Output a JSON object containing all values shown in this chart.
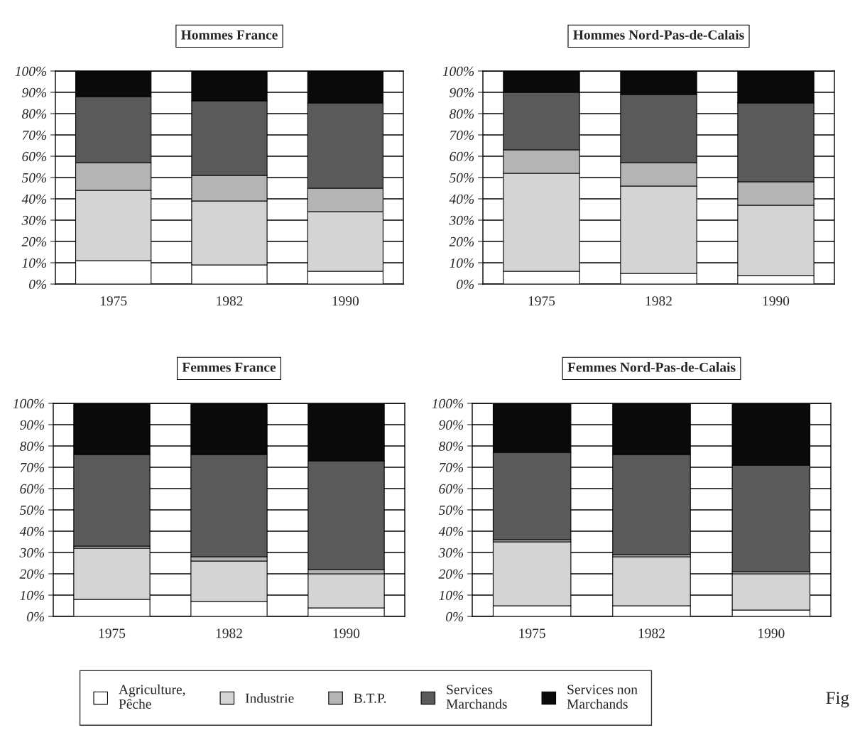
{
  "chart_data": [
    {
      "type": "bar",
      "title": "Hommes France",
      "categories": [
        "1975",
        "1982",
        "1990"
      ],
      "stacked": true,
      "grid": "y",
      "ylim": [
        0,
        100
      ],
      "yticks": [
        {
          "value": 0,
          "label": "0%"
        },
        {
          "value": 10,
          "label": "10%"
        },
        {
          "value": 20,
          "label": "20%"
        },
        {
          "value": 30,
          "label": "30%"
        },
        {
          "value": 40,
          "label": "40%"
        },
        {
          "value": 50,
          "label": "50%"
        },
        {
          "value": 60,
          "label": "60%"
        },
        {
          "value": 70,
          "label": "70%"
        },
        {
          "value": 80,
          "label": "80%"
        },
        {
          "value": 90,
          "label": "90%"
        },
        {
          "value": 100,
          "label": "100%"
        }
      ],
      "series": [
        {
          "color": "#ffffff",
          "values": [
            11,
            9,
            6
          ]
        },
        {
          "color": "#d4d4d4",
          "values": [
            33,
            30,
            28
          ]
        },
        {
          "color": "#b4b4b4",
          "values": [
            13,
            12,
            11
          ]
        },
        {
          "color": "#5a5a5a",
          "values": [
            31,
            35,
            40
          ]
        },
        {
          "color": "#0a0a0a",
          "values": [
            12,
            14,
            15
          ]
        }
      ]
    },
    {
      "type": "bar",
      "title": "Hommes Nord-Pas-de-Calais",
      "categories": [
        "1975",
        "1982",
        "1990"
      ],
      "stacked": true,
      "grid": "y",
      "ylim": [
        0,
        100
      ],
      "yticks": [
        {
          "value": 0,
          "label": "0%"
        },
        {
          "value": 10,
          "label": "10%"
        },
        {
          "value": 20,
          "label": "20%"
        },
        {
          "value": 30,
          "label": "30%"
        },
        {
          "value": 40,
          "label": "40%"
        },
        {
          "value": 50,
          "label": "50%"
        },
        {
          "value": 60,
          "label": "60%"
        },
        {
          "value": 70,
          "label": "70%"
        },
        {
          "value": 80,
          "label": "80%"
        },
        {
          "value": 90,
          "label": "90%"
        },
        {
          "value": 100,
          "label": "100%"
        }
      ],
      "series": [
        {
          "color": "#ffffff",
          "values": [
            6,
            5,
            4
          ]
        },
        {
          "color": "#d4d4d4",
          "values": [
            46,
            41,
            33
          ]
        },
        {
          "color": "#b4b4b4",
          "values": [
            11,
            11,
            11
          ]
        },
        {
          "color": "#5a5a5a",
          "values": [
            27,
            32,
            37
          ]
        },
        {
          "color": "#0a0a0a",
          "values": [
            10,
            11,
            15
          ]
        }
      ]
    },
    {
      "type": "bar",
      "title": "Femmes France",
      "categories": [
        "1975",
        "1982",
        "1990"
      ],
      "stacked": true,
      "grid": "y",
      "ylim": [
        0,
        100
      ],
      "yticks": [
        {
          "value": 0,
          "label": "0%"
        },
        {
          "value": 10,
          "label": "10%"
        },
        {
          "value": 20,
          "label": "20%"
        },
        {
          "value": 30,
          "label": "30%"
        },
        {
          "value": 40,
          "label": "40%"
        },
        {
          "value": 50,
          "label": "50%"
        },
        {
          "value": 60,
          "label": "60%"
        },
        {
          "value": 70,
          "label": "70%"
        },
        {
          "value": 80,
          "label": "80%"
        },
        {
          "value": 90,
          "label": "90%"
        },
        {
          "value": 100,
          "label": "100%"
        }
      ],
      "series": [
        {
          "color": "#ffffff",
          "values": [
            8,
            7,
            4
          ]
        },
        {
          "color": "#d4d4d4",
          "values": [
            24,
            19,
            16
          ]
        },
        {
          "color": "#b4b4b4",
          "values": [
            1,
            2,
            2
          ]
        },
        {
          "color": "#5a5a5a",
          "values": [
            43,
            48,
            51
          ]
        },
        {
          "color": "#0a0a0a",
          "values": [
            24,
            24,
            27
          ]
        }
      ]
    },
    {
      "type": "bar",
      "title": "Femmes Nord-Pas-de-Calais",
      "categories": [
        "1975",
        "1982",
        "1990"
      ],
      "stacked": true,
      "grid": "y",
      "legend": "bottom",
      "ylim": [
        0,
        100
      ],
      "yticks": [
        {
          "value": 0,
          "label": "0%"
        },
        {
          "value": 10,
          "label": "10%"
        },
        {
          "value": 20,
          "label": "20%"
        },
        {
          "value": 30,
          "label": "30%"
        },
        {
          "value": 40,
          "label": "40%"
        },
        {
          "value": 50,
          "label": "50%"
        },
        {
          "value": 60,
          "label": "60%"
        },
        {
          "value": 70,
          "label": "70%"
        },
        {
          "value": 80,
          "label": "80%"
        },
        {
          "value": 90,
          "label": "90%"
        },
        {
          "value": 100,
          "label": "100%"
        }
      ],
      "annotations": [
        "Fig"
      ],
      "series": [
        {
          "name": "Agriculture,\nPêche",
          "color": "#ffffff",
          "values": [
            5,
            5,
            3
          ]
        },
        {
          "name": "Industrie",
          "color": "#d4d4d4",
          "values": [
            30,
            23,
            17
          ]
        },
        {
          "name": "B.T.P.",
          "color": "#b4b4b4",
          "values": [
            1,
            1,
            1
          ]
        },
        {
          "name": "Services\nMarchands",
          "color": "#5a5a5a",
          "values": [
            41,
            47,
            50
          ]
        },
        {
          "name": "Services non\nMarchands",
          "color": "#0a0a0a",
          "values": [
            23,
            24,
            29
          ]
        }
      ]
    }
  ]
}
